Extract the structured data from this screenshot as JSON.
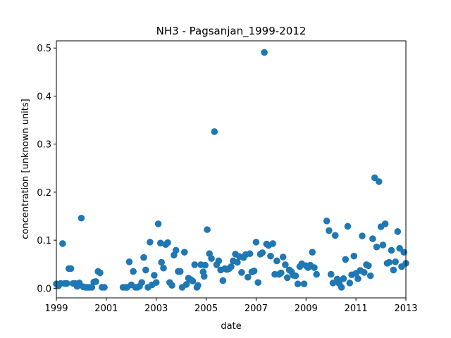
{
  "chart_data": {
    "type": "scatter",
    "title": "NH3 - Pagsanjan_1999-2012",
    "xlabel": "date",
    "ylabel": "concentration [unknown units]",
    "xlim": [
      1999.0,
      2013.0
    ],
    "ylim": [
      -0.02,
      0.515
    ],
    "x_ticks": [
      "1999",
      "2001",
      "2003",
      "2005",
      "2007",
      "2009",
      "2011",
      "2013"
    ],
    "y_ticks": [
      "0.0",
      "0.1",
      "0.2",
      "0.3",
      "0.4",
      "0.5"
    ],
    "grid": false,
    "marker_color": "#1f77b4",
    "points": [
      [
        1999.0,
        0.009
      ],
      [
        1999.08,
        0.005
      ],
      [
        1999.17,
        0.01
      ],
      [
        1999.25,
        0.093
      ],
      [
        1999.33,
        0.01
      ],
      [
        1999.42,
        0.01
      ],
      [
        1999.5,
        0.041
      ],
      [
        1999.58,
        0.041
      ],
      [
        1999.67,
        0.01
      ],
      [
        1999.75,
        0.01
      ],
      [
        1999.83,
        0.004
      ],
      [
        1999.92,
        0.011
      ],
      [
        2000.0,
        0.146
      ],
      [
        2000.08,
        0.003
      ],
      [
        2000.17,
        0.002
      ],
      [
        2000.25,
        0.002
      ],
      [
        2000.33,
        0.002
      ],
      [
        2000.42,
        0.002
      ],
      [
        2000.5,
        0.013
      ],
      [
        2000.58,
        0.014
      ],
      [
        2000.67,
        0.035
      ],
      [
        2000.75,
        0.032
      ],
      [
        2000.83,
        0.002
      ],
      [
        2000.92,
        0.002
      ],
      [
        2001.67,
        0.002
      ],
      [
        2001.75,
        0.002
      ],
      [
        2001.83,
        0.002
      ],
      [
        2001.92,
        0.055
      ],
      [
        2002.0,
        0.007
      ],
      [
        2002.08,
        0.035
      ],
      [
        2002.17,
        0.002
      ],
      [
        2002.25,
        0.002
      ],
      [
        2002.33,
        0.004
      ],
      [
        2002.42,
        0.012
      ],
      [
        2002.5,
        0.064
      ],
      [
        2002.58,
        0.038
      ],
      [
        2002.67,
        0.002
      ],
      [
        2002.75,
        0.096
      ],
      [
        2002.83,
        0.007
      ],
      [
        2002.92,
        0.027
      ],
      [
        2003.0,
        0.012
      ],
      [
        2003.08,
        0.134
      ],
      [
        2003.17,
        0.094
      ],
      [
        2003.21,
        0.054
      ],
      [
        2003.29,
        0.042
      ],
      [
        2003.38,
        0.091
      ],
      [
        2003.46,
        0.095
      ],
      [
        2003.54,
        0.012
      ],
      [
        2003.63,
        0.006
      ],
      [
        2003.71,
        0.069
      ],
      [
        2003.79,
        0.079
      ],
      [
        2003.88,
        0.035
      ],
      [
        2003.96,
        0.035
      ],
      [
        2004.04,
        0.002
      ],
      [
        2004.13,
        0.075
      ],
      [
        2004.21,
        0.008
      ],
      [
        2004.29,
        0.021
      ],
      [
        2004.38,
        0.018
      ],
      [
        2004.46,
        0.015
      ],
      [
        2004.54,
        0.049
      ],
      [
        2004.63,
        0.002
      ],
      [
        2004.67,
        0.006
      ],
      [
        2004.79,
        0.049
      ],
      [
        2004.88,
        0.034
      ],
      [
        2004.92,
        0.025
      ],
      [
        2004.96,
        0.048
      ],
      [
        2005.04,
        0.122
      ],
      [
        2005.13,
        0.072
      ],
      [
        2005.21,
        0.062
      ],
      [
        2005.33,
        0.326
      ],
      [
        2005.42,
        0.049
      ],
      [
        2005.5,
        0.057
      ],
      [
        2005.58,
        0.038
      ],
      [
        2005.67,
        0.016
      ],
      [
        2005.75,
        0.041
      ],
      [
        2005.83,
        0.039
      ],
      [
        2005.92,
        0.041
      ],
      [
        2006.0,
        0.045
      ],
      [
        2006.08,
        0.057
      ],
      [
        2006.17,
        0.071
      ],
      [
        2006.25,
        0.054
      ],
      [
        2006.33,
        0.066
      ],
      [
        2006.42,
        0.033
      ],
      [
        2006.5,
        0.064
      ],
      [
        2006.58,
        0.07
      ],
      [
        2006.67,
        0.023
      ],
      [
        2006.75,
        0.072
      ],
      [
        2006.83,
        0.034
      ],
      [
        2006.92,
        0.036
      ],
      [
        2007.0,
        0.096
      ],
      [
        2007.08,
        0.012
      ],
      [
        2007.17,
        0.071
      ],
      [
        2007.25,
        0.074
      ],
      [
        2007.33,
        0.491
      ],
      [
        2007.42,
        0.092
      ],
      [
        2007.5,
        0.089
      ],
      [
        2007.58,
        0.067
      ],
      [
        2007.67,
        0.093
      ],
      [
        2007.75,
        0.029
      ],
      [
        2007.83,
        0.057
      ],
      [
        2007.92,
        0.029
      ],
      [
        2008.0,
        0.032
      ],
      [
        2008.08,
        0.065
      ],
      [
        2008.17,
        0.049
      ],
      [
        2008.25,
        0.022
      ],
      [
        2008.33,
        0.038
      ],
      [
        2008.42,
        0.034
      ],
      [
        2008.5,
        0.027
      ],
      [
        2008.58,
        0.026
      ],
      [
        2008.67,
        0.009
      ],
      [
        2008.75,
        0.045
      ],
      [
        2008.83,
        0.051
      ],
      [
        2008.92,
        0.009
      ],
      [
        2009.0,
        0.047
      ],
      [
        2009.08,
        0.043
      ],
      [
        2009.17,
        0.048
      ],
      [
        2009.25,
        0.075
      ],
      [
        2009.33,
        0.043
      ],
      [
        2009.42,
        0.029
      ],
      [
        2009.83,
        0.14
      ],
      [
        2009.92,
        0.12
      ],
      [
        2010.0,
        0.029
      ],
      [
        2010.08,
        0.011
      ],
      [
        2010.17,
        0.11
      ],
      [
        2010.25,
        0.019
      ],
      [
        2010.33,
        0.01
      ],
      [
        2010.42,
        0.002
      ],
      [
        2010.5,
        0.02
      ],
      [
        2010.58,
        0.06
      ],
      [
        2010.67,
        0.129
      ],
      [
        2010.75,
        0.011
      ],
      [
        2010.83,
        0.028
      ],
      [
        2010.92,
        0.067
      ],
      [
        2011.0,
        0.031
      ],
      [
        2011.08,
        0.02
      ],
      [
        2011.17,
        0.037
      ],
      [
        2011.25,
        0.109
      ],
      [
        2011.33,
        0.033
      ],
      [
        2011.42,
        0.049
      ],
      [
        2011.5,
        0.047
      ],
      [
        2011.58,
        0.026
      ],
      [
        2011.67,
        0.103
      ],
      [
        2011.75,
        0.23
      ],
      [
        2011.83,
        0.086
      ],
      [
        2011.92,
        0.222
      ],
      [
        2012.0,
        0.128
      ],
      [
        2012.08,
        0.09
      ],
      [
        2012.17,
        0.134
      ],
      [
        2012.25,
        0.052
      ],
      [
        2012.33,
        0.054
      ],
      [
        2012.42,
        0.079
      ],
      [
        2012.5,
        0.038
      ],
      [
        2012.58,
        0.055
      ],
      [
        2012.67,
        0.118
      ],
      [
        2012.75,
        0.083
      ],
      [
        2012.83,
        0.045
      ],
      [
        2012.92,
        0.075
      ],
      [
        2013.0,
        0.052
      ]
    ]
  }
}
